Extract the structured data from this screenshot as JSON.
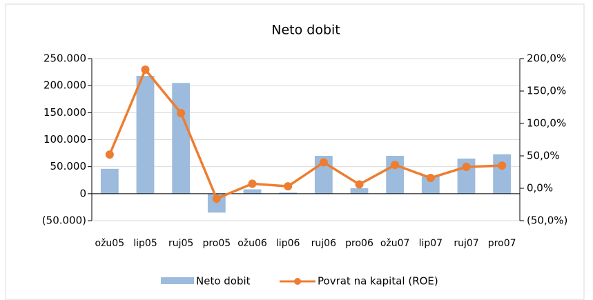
{
  "chart_data": {
    "type": "bar-line",
    "title": "Neto dobit",
    "categories": [
      "ožu05",
      "lip05",
      "ruj05",
      "pro05",
      "ožu06",
      "lip06",
      "ruj06",
      "pro06",
      "ožu07",
      "lip07",
      "ruj07",
      "pro07"
    ],
    "series": [
      {
        "name": "Neto dobit",
        "type": "bar",
        "color": "#9dbbdc",
        "values": [
          46000,
          218000,
          205000,
          -35000,
          8000,
          2000,
          70000,
          10000,
          70000,
          32000,
          65000,
          73000
        ]
      },
      {
        "name": "Povrat na kapital (ROE)",
        "type": "line",
        "axis": "y2",
        "color": "#ed7d31",
        "values": [
          52,
          183,
          116,
          -16,
          7,
          3,
          40,
          6,
          36,
          16,
          33,
          35
        ]
      }
    ],
    "ylim": [
      -50000,
      250000
    ],
    "yticks": [
      {
        "value": -50000,
        "label": "(50.000)"
      },
      {
        "value": 0,
        "label": "0"
      },
      {
        "value": 50000,
        "label": "50.000"
      },
      {
        "value": 100000,
        "label": "100.000"
      },
      {
        "value": 150000,
        "label": "150.000"
      },
      {
        "value": 200000,
        "label": "200.000"
      },
      {
        "value": 250000,
        "label": "250.000"
      }
    ],
    "y2lim": [
      -50,
      200
    ],
    "y2ticks": [
      {
        "value": -50,
        "label": "(50,0%)"
      },
      {
        "value": 0,
        "label": "0,0%"
      },
      {
        "value": 50,
        "label": "50,0%"
      },
      {
        "value": 100,
        "label": "100,0%"
      },
      {
        "value": 150,
        "label": "150,0%"
      },
      {
        "value": 200,
        "label": "200,0%"
      }
    ],
    "grid": true,
    "legend": "bottom"
  }
}
